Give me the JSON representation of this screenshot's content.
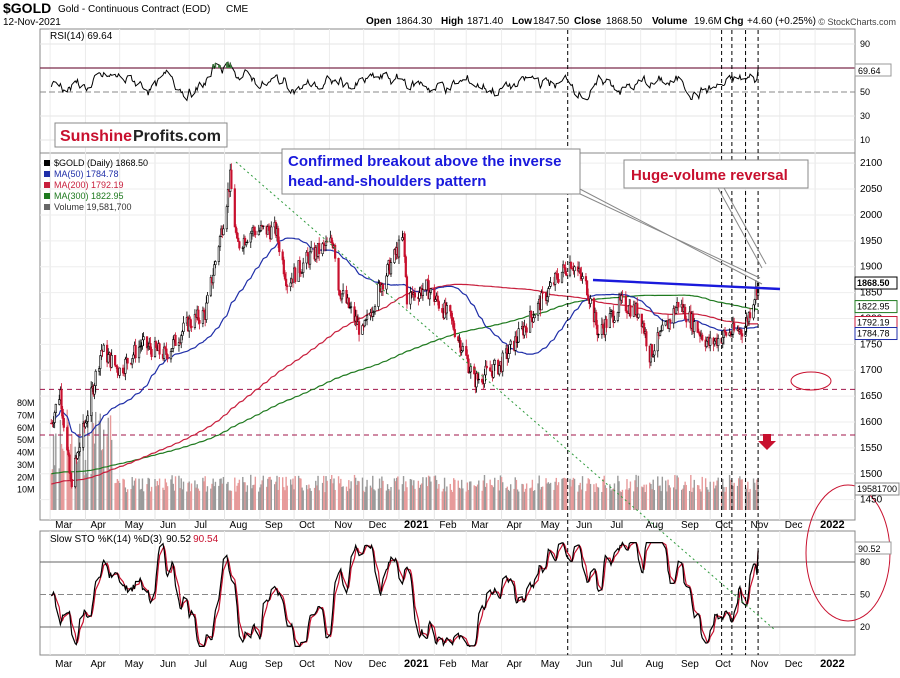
{
  "header": {
    "symbol": "$GOLD",
    "name": "Gold - Continuous Contract (EOD)",
    "exchange": "CME",
    "date": "12-Nov-2021",
    "watermark": "© StockCharts.com",
    "ohlc": {
      "open_label": "Open",
      "open": "1864.30",
      "high_label": "High",
      "high": "1871.40",
      "low_label": "Low",
      "low": "1847.50",
      "close_label": "Close",
      "close": "1868.50",
      "volume_label": "Volume",
      "volume": "19.6M",
      "chg_label": "Chg",
      "chg": "+4.60 (+0.25%)"
    }
  },
  "rsi_panel": {
    "legend": "RSI(14) 69.64",
    "ticks": [
      "90",
      "70",
      "50",
      "30",
      "10"
    ],
    "last_value": "69.64"
  },
  "price_panel": {
    "logo_part1": "Sunshine",
    "logo_part2": "Profits.com",
    "legend": [
      {
        "text": "$GOLD (Daily) 1868.50",
        "color": "#000000"
      },
      {
        "text": "MA(50) 1784.78",
        "color": "#1f2ea8"
      },
      {
        "text": "MA(200) 1792.19",
        "color": "#c81e3c"
      },
      {
        "text": "MA(300) 1822.95",
        "color": "#1f7a1f"
      },
      {
        "text": "Volume 19,581,700",
        "color": "#666666"
      }
    ],
    "price_ticks": [
      "2100",
      "2050",
      "2000",
      "1950",
      "1900",
      "1850",
      "1800",
      "1750",
      "1700",
      "1650",
      "1600",
      "1550",
      "1500",
      "1450"
    ],
    "volume_ticks": [
      "80M",
      "70M",
      "60M",
      "50M",
      "40M",
      "30M",
      "20M",
      "10M"
    ],
    "value_tags": {
      "close": "1868.50",
      "ma300": "1822.95",
      "ma200": "1792.19",
      "ma50": "1784.78",
      "volume": "19581700"
    },
    "annotation_breakout": [
      "Confirmed breakout above the inverse",
      "head-and-shoulders pattern"
    ],
    "annotation_reversal": "Huge-volume reversal"
  },
  "sto_panel": {
    "legend_prefix": "Slow STO %K(14) %D(3)",
    "k_value": "90.52",
    "d_value": "90.54",
    "ticks": [
      "80",
      "50",
      "20"
    ],
    "last_value": "90.52"
  },
  "x_axis": {
    "months": [
      "Mar",
      "Apr",
      "May",
      "Jun",
      "Jul",
      "Aug",
      "Sep",
      "Oct",
      "Nov",
      "Dec",
      "2021",
      "Feb",
      "Mar",
      "Apr",
      "May",
      "Jun",
      "Jul",
      "Aug",
      "Sep",
      "Oct",
      "Nov",
      "Dec",
      "2022"
    ]
  },
  "colors": {
    "up_candle": "#000000",
    "down_candle": "#c8102e",
    "ma50": "#1f2ea8",
    "ma200": "#c81e3c",
    "ma300": "#1f7a1f",
    "annotation_blue": "#1a1adc",
    "annotation_red": "#c8102e",
    "rsi_overbought_fill": "#3b7a3b"
  },
  "chart_data": {
    "type": "line",
    "title": "$GOLD Gold - Continuous Contract (EOD) CME",
    "x_range": [
      "2020-03",
      "2022-01"
    ],
    "x_months": [
      "2020-03",
      "2020-04",
      "2020-05",
      "2020-06",
      "2020-07",
      "2020-08",
      "2020-09",
      "2020-10",
      "2020-11",
      "2020-12",
      "2021-01",
      "2021-02",
      "2021-03",
      "2021-04",
      "2021-05",
      "2021-06",
      "2021-07",
      "2021-08",
      "2021-09",
      "2021-10",
      "2021-11",
      "2021-12",
      "2022-01"
    ],
    "ylim": [
      1430,
      2110
    ],
    "price_approx": [
      [
        "2020-03-01",
        1590
      ],
      [
        "2020-03-10",
        1660
      ],
      [
        "2020-03-19",
        1480
      ],
      [
        "2020-04-01",
        1600
      ],
      [
        "2020-04-15",
        1740
      ],
      [
        "2020-05-01",
        1700
      ],
      [
        "2020-05-20",
        1750
      ],
      [
        "2020-06-10",
        1730
      ],
      [
        "2020-06-30",
        1790
      ],
      [
        "2020-07-15",
        1810
      ],
      [
        "2020-07-31",
        1990
      ],
      [
        "2020-08-06",
        2070
      ],
      [
        "2020-08-12",
        1940
      ],
      [
        "2020-08-25",
        1970
      ],
      [
        "2020-09-15",
        1970
      ],
      [
        "2020-09-25",
        1870
      ],
      [
        "2020-10-15",
        1920
      ],
      [
        "2020-11-05",
        1950
      ],
      [
        "2020-11-09",
        1860
      ],
      [
        "2020-11-30",
        1770
      ],
      [
        "2020-12-15",
        1860
      ],
      [
        "2021-01-05",
        1955
      ],
      [
        "2021-01-08",
        1840
      ],
      [
        "2021-01-25",
        1860
      ],
      [
        "2021-02-15",
        1800
      ],
      [
        "2021-02-28",
        1730
      ],
      [
        "2021-03-08",
        1680
      ],
      [
        "2021-03-31",
        1710
      ],
      [
        "2021-04-20",
        1780
      ],
      [
        "2021-05-05",
        1830
      ],
      [
        "2021-05-20",
        1880
      ],
      [
        "2021-06-01",
        1910
      ],
      [
        "2021-06-15",
        1860
      ],
      [
        "2021-06-25",
        1770
      ],
      [
        "2021-07-15",
        1830
      ],
      [
        "2021-08-01",
        1810
      ],
      [
        "2021-08-09",
        1730
      ],
      [
        "2021-08-25",
        1790
      ],
      [
        "2021-09-03",
        1830
      ],
      [
        "2021-09-30",
        1750
      ],
      [
        "2021-10-15",
        1770
      ],
      [
        "2021-10-31",
        1780
      ],
      [
        "2021-11-05",
        1815
      ],
      [
        "2021-11-12",
        1868.5
      ]
    ],
    "moving_averages": {
      "ma50_last": 1784.78,
      "ma200_last": 1792.19,
      "ma300_last": 1822.95
    },
    "horizontal_levels": [
      1663,
      1575
    ],
    "volume_last": 19581700,
    "rsi_last": 69.64,
    "sto_k_last": 90.52,
    "sto_d_last": 90.54
  }
}
